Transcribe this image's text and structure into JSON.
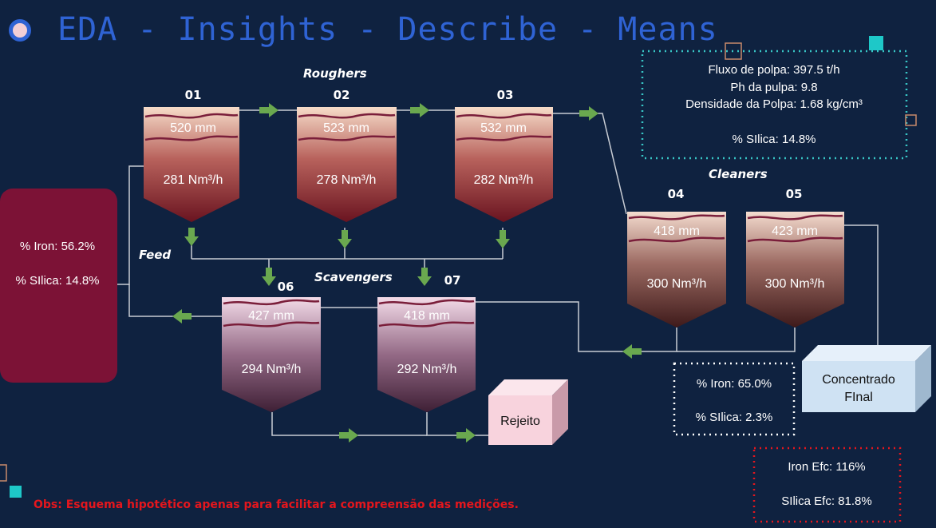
{
  "title": "EDA - Insights - Describe - Means",
  "sections": {
    "roughers": "Roughers",
    "cleaners": "Cleaners",
    "scavengers": "Scavengers",
    "feed": "Feed"
  },
  "cells": {
    "c01": {
      "id": "01",
      "level": "520 mm",
      "air": "281 Nm³/h"
    },
    "c02": {
      "id": "02",
      "level": "523 mm",
      "air": "278 Nm³/h"
    },
    "c03": {
      "id": "03",
      "level": "532 mm",
      "air": "282 Nm³/h"
    },
    "c04": {
      "id": "04",
      "level": "418 mm",
      "air": "300 Nm³/h"
    },
    "c05": {
      "id": "05",
      "level": "423 mm",
      "air": "300 Nm³/h"
    },
    "c06": {
      "id": "06",
      "level": "427 mm",
      "air": "294 Nm³/h"
    },
    "c07": {
      "id": "07",
      "level": "418 mm",
      "air": "292 Nm³/h"
    }
  },
  "feed_box": {
    "iron": "% Iron: 56.2%",
    "silica": "% SIlica: 14.8%"
  },
  "pulp_box": {
    "flow": "Fluxo de polpa: 397.5 t/h",
    "ph": "Ph da pulpa: 9.8",
    "density": "Densidade da Polpa: 1.68 kg/cm³",
    "silica": "% SIlica: 14.8%"
  },
  "concentrate_box": {
    "iron": "% Iron: 65.0%",
    "silica": "% SIlica: 2.3%"
  },
  "concentrado": {
    "line1": "Concentrado",
    "line2": "FInal"
  },
  "rejeito": "Rejeito",
  "efficiency": {
    "iron": "Iron Efc: 116%",
    "silica": "SIlica Efc: 81.8%"
  },
  "obs": "Obs: Esquema hipotético apenas para facilitar a compreensão das medições.",
  "colors": {
    "background": "#0f2240",
    "title": "#2f63d4",
    "feed_box": "#7c1236",
    "arrow": "#6aa84f",
    "pulp_border": "#38c5c5",
    "eff_border": "#e5161d",
    "concentrate_face": "#cfe2f3",
    "rejeito_face": "#f8d3dd"
  }
}
